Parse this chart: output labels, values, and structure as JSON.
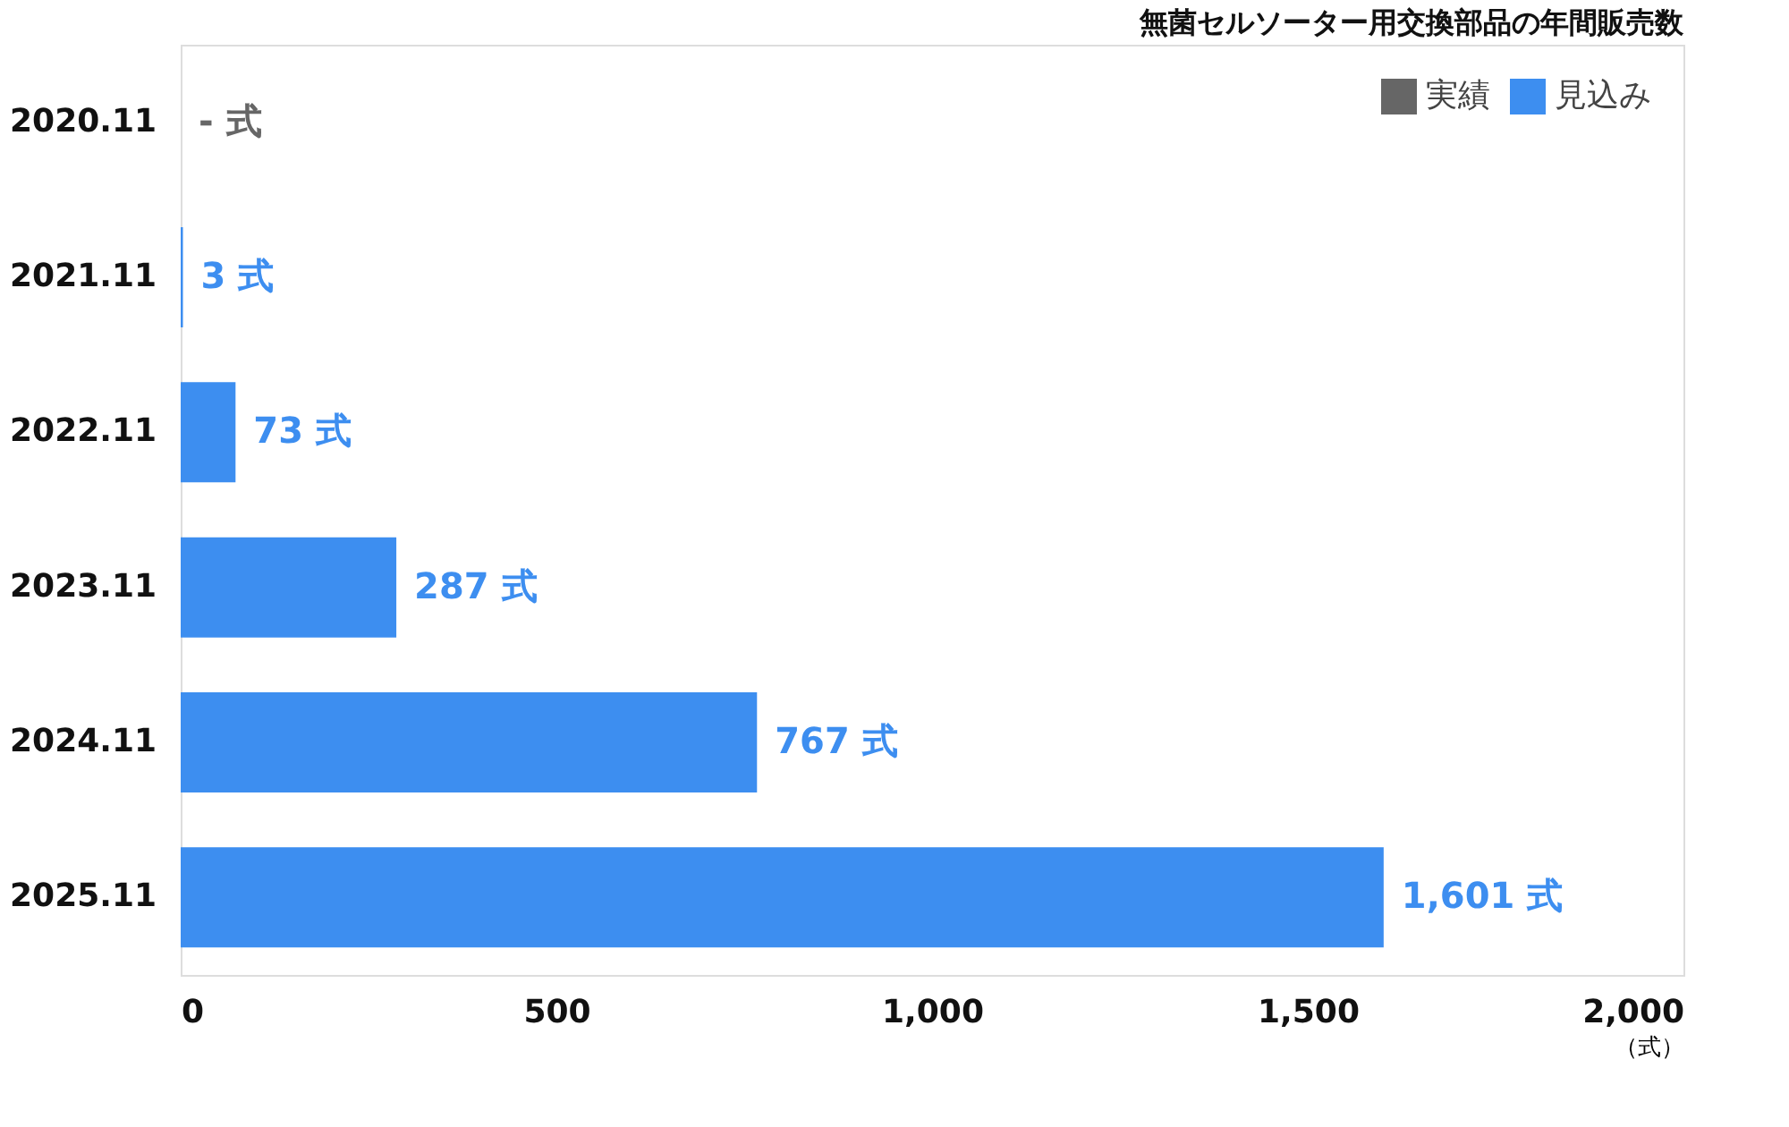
{
  "chart_data": {
    "type": "bar",
    "orientation": "horizontal",
    "title": "無菌セルソーター用交換部品の年間販売数",
    "xlabel": "（式）",
    "categories": [
      "2020.11",
      "2021.11",
      "2022.11",
      "2023.11",
      "2024.11",
      "2025.11"
    ],
    "series": [
      {
        "name": "実績",
        "color": "#666666",
        "values": [
          null,
          null,
          null,
          null,
          null,
          null
        ],
        "value_labels": [
          "- 式",
          null,
          null,
          null,
          null,
          null
        ]
      },
      {
        "name": "見込み",
        "color": "#3d8ef0",
        "values": [
          null,
          3,
          73,
          287,
          767,
          1601
        ],
        "value_labels": [
          null,
          "3 式",
          "73 式",
          "287 式",
          "767 式",
          "1,601 式"
        ]
      }
    ],
    "xlim": [
      0,
      2000
    ],
    "xticks": [
      0,
      500,
      {
        "value": 1000,
        "label": "1,000"
      },
      {
        "value": 1500,
        "label": "1,500"
      },
      {
        "value": 2000,
        "label": "2,000"
      }
    ],
    "grid": false,
    "legend": "top right"
  }
}
